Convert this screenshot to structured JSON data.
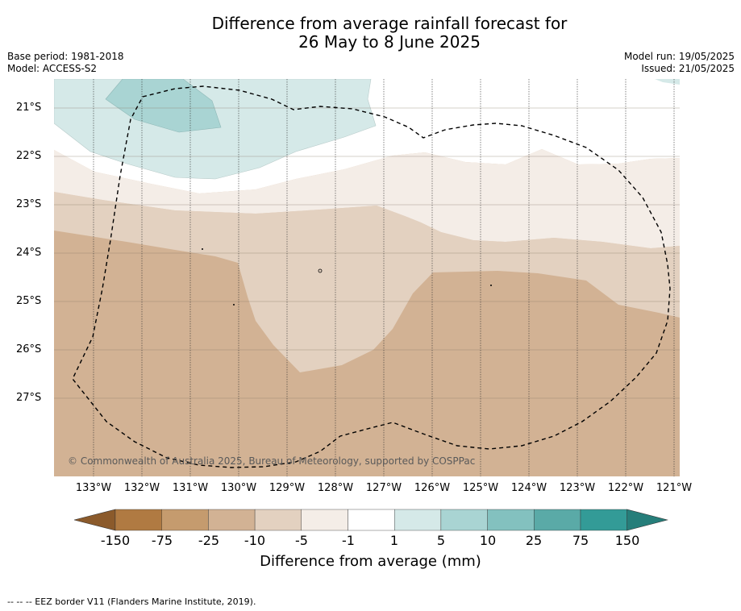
{
  "title_line1": "Difference from average rainfall forecast for",
  "title_line2": "26 May to 8 June 2025",
  "base_period": "Base period: 1981-2018",
  "model": "Model: ACCESS-S2",
  "model_run": "Model run: 19/05/2025",
  "issued": "Issued: 21/05/2025",
  "lat_labels": [
    "21°S",
    "22°S",
    "23°S",
    "24°S",
    "25°S",
    "26°S",
    "27°S"
  ],
  "lon_labels": [
    "133°W",
    "132°W",
    "131°W",
    "130°W",
    "129°W",
    "128°W",
    "127°W",
    "126°W",
    "125°W",
    "124°W",
    "123°W",
    "122°W",
    "121°W"
  ],
  "copyright": "© Commonwealth of Australia 2025, Bureau of Meteorology, supported by COSPPac",
  "colorbar": {
    "ticks": [
      "-150",
      "-75",
      "-25",
      "-10",
      "-5",
      "-1",
      "1",
      "5",
      "10",
      "25",
      "75",
      "150"
    ],
    "colors": [
      "#8b5a2b",
      "#b07a42",
      "#c59b6e",
      "#d2b294",
      "#e3d1c0",
      "#f4ede7",
      "#ffffff",
      "#d5e9e8",
      "#a9d4d3",
      "#83c1bf",
      "#5aaaa7",
      "#339b97",
      "#267e7a"
    ],
    "label": "Difference from average (mm)"
  },
  "footer": "--  --  -- EEZ border V11 (Flanders Marine Institute, 2019)."
}
